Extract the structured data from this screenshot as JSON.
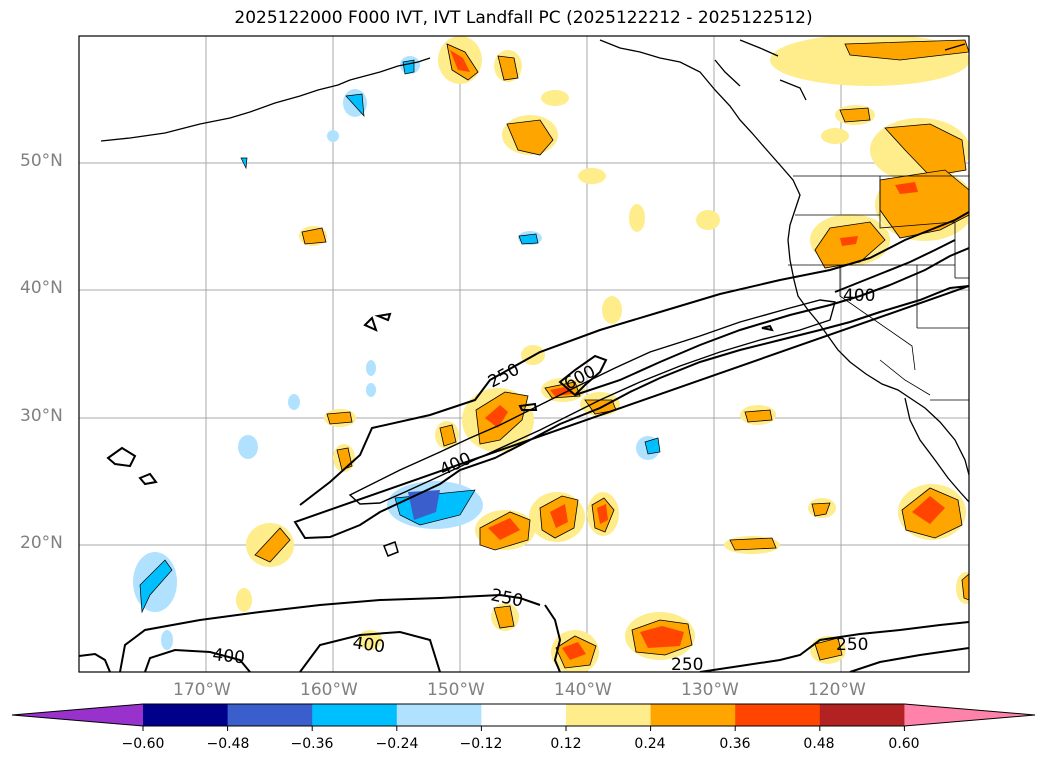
{
  "title": "2025122000 F000 IVT, IVT Landfall PC (2025122212 - 2025122512)",
  "map": {
    "lon_range": [
      -180,
      -110
    ],
    "lat_range": [
      10,
      60
    ],
    "grid": true,
    "lat_ticks": [
      {
        "value": 20,
        "label": "20°N"
      },
      {
        "value": 30,
        "label": "30°N"
      },
      {
        "value": 40,
        "label": "40°N"
      },
      {
        "value": 50,
        "label": "50°N"
      }
    ],
    "lon_ticks": [
      {
        "value": -170,
        "label": "170°W"
      },
      {
        "value": -160,
        "label": "160°W"
      },
      {
        "value": -150,
        "label": "150°W"
      },
      {
        "value": -140,
        "label": "140°W"
      },
      {
        "value": -130,
        "label": "130°W"
      },
      {
        "value": -120,
        "label": "120°W"
      }
    ],
    "contour_labels": [
      "250",
      "600",
      "400",
      "400",
      "250",
      "400",
      "400",
      "250",
      "250"
    ]
  },
  "colorbar": {
    "ticks": [
      "−0.60",
      "−0.48",
      "−0.36",
      "−0.24",
      "−0.12",
      "0.12",
      "0.24",
      "0.36",
      "0.48",
      "0.60"
    ],
    "colors": [
      "#9932cc",
      "#00008b",
      "#3a5fcd",
      "#00bfff",
      "#b0e2ff",
      "#ffffff",
      "#ffec8b",
      "#ffa500",
      "#ff4500",
      "#b22222",
      "#ff82ab"
    ]
  }
}
